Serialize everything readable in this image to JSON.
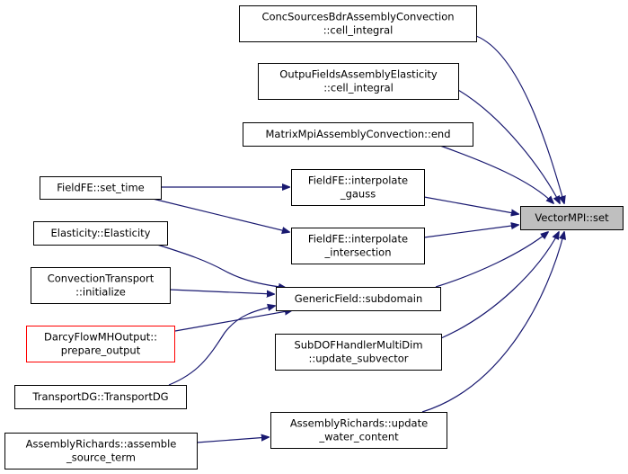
{
  "colors": {
    "edge": "#191970",
    "root_fill": "#bfbfbf",
    "highlight_border": "#ff0000"
  },
  "nodes": [
    {
      "id": "set",
      "lines": [
        "VectorMPI::set"
      ],
      "root": true
    },
    {
      "id": "conc",
      "lines": [
        "ConcSourcesBdrAssemblyConvection",
        "::cell_integral"
      ]
    },
    {
      "id": "outpu",
      "lines": [
        "OutpuFieldsAssemblyElasticity",
        "::cell_integral"
      ]
    },
    {
      "id": "matrix",
      "lines": [
        "MatrixMpiAssemblyConvection::end"
      ]
    },
    {
      "id": "gauss",
      "lines": [
        "FieldFE::interpolate",
        "_gauss"
      ]
    },
    {
      "id": "inter",
      "lines": [
        "FieldFE::interpolate",
        "_intersection"
      ]
    },
    {
      "id": "subdomain",
      "lines": [
        "GenericField::subdomain"
      ]
    },
    {
      "id": "subdof",
      "lines": [
        "SubDOFHandlerMultiDim",
        "::update_subvector"
      ]
    },
    {
      "id": "update",
      "lines": [
        "AssemblyRichards::update",
        "_water_content"
      ]
    },
    {
      "id": "settime",
      "lines": [
        "FieldFE::set_time"
      ]
    },
    {
      "id": "elast",
      "lines": [
        "Elasticity::Elasticity"
      ]
    },
    {
      "id": "conv",
      "lines": [
        "ConvectionTransport",
        "::initialize"
      ]
    },
    {
      "id": "darcy",
      "lines": [
        "DarcyFlowMHOutput::",
        "prepare_output"
      ],
      "border": "red"
    },
    {
      "id": "tdg",
      "lines": [
        "TransportDG::TransportDG"
      ]
    },
    {
      "id": "assemble",
      "lines": [
        "AssemblyRichards::assemble",
        "_source_term"
      ]
    }
  ],
  "edges": [
    {
      "from": "conc",
      "to": "set"
    },
    {
      "from": "outpu",
      "to": "set"
    },
    {
      "from": "matrix",
      "to": "set"
    },
    {
      "from": "gauss",
      "to": "set"
    },
    {
      "from": "inter",
      "to": "set"
    },
    {
      "from": "subdomain",
      "to": "set"
    },
    {
      "from": "subdof",
      "to": "set"
    },
    {
      "from": "update",
      "to": "set"
    },
    {
      "from": "settime",
      "to": "gauss"
    },
    {
      "from": "settime",
      "to": "inter"
    },
    {
      "from": "elast",
      "to": "subdomain"
    },
    {
      "from": "conv",
      "to": "subdomain"
    },
    {
      "from": "darcy",
      "to": "subdomain"
    },
    {
      "from": "tdg",
      "to": "subdomain"
    },
    {
      "from": "assemble",
      "to": "update"
    }
  ]
}
